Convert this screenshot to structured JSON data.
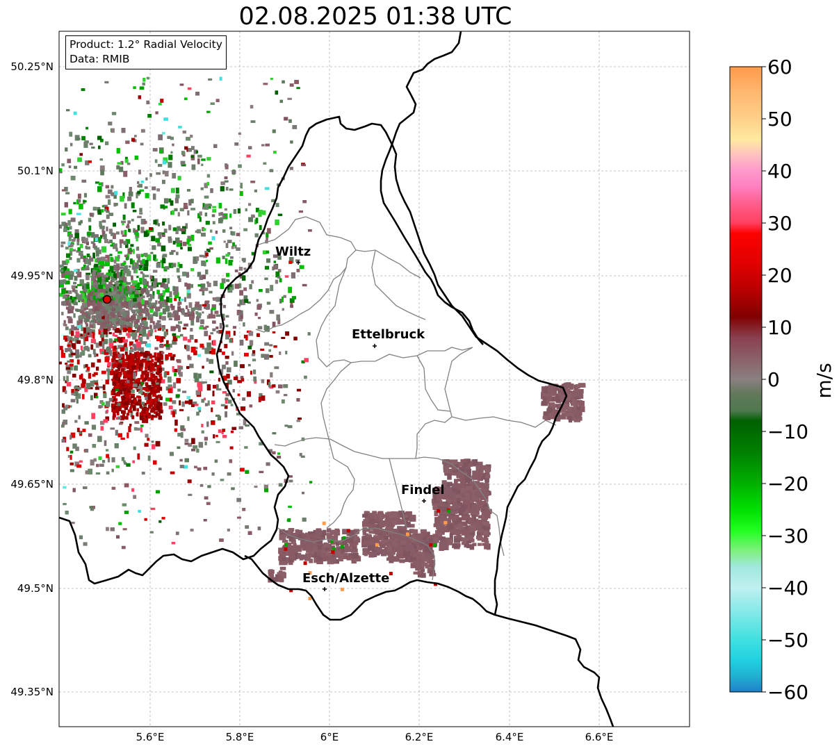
{
  "title": "02.08.2025 01:38 UTC",
  "info": {
    "product": "Product: 1.2° Radial Velocity",
    "data": "Data: RMIB"
  },
  "lat_labels": [
    "50.25°N",
    "50.1°N",
    "49.95°N",
    "49.8°N",
    "49.65°N",
    "49.5°N",
    "49.35°N"
  ],
  "lon_labels": [
    "5.6°E",
    "5.8°E",
    "6°E",
    "6.2°E",
    "6.4°E",
    "6.6°E"
  ],
  "cities": [
    {
      "name": "Wiltz"
    },
    {
      "name": "Ettelbruck"
    },
    {
      "name": "Findel"
    },
    {
      "name": "Esch/Alzette"
    }
  ],
  "colorbar": {
    "unit": "m/s",
    "tick_labels": [
      "60",
      "50",
      "40",
      "30",
      "20",
      "10",
      "0",
      "−10",
      "−20",
      "−30",
      "−40",
      "−50",
      "−60"
    ],
    "range": [
      -60,
      60
    ],
    "stops": [
      {
        "v": 60,
        "c": "#ff9a4a"
      },
      {
        "v": 55,
        "c": "#ffb870"
      },
      {
        "v": 50,
        "c": "#ffd08a"
      },
      {
        "v": 46,
        "c": "#ffe9a0"
      },
      {
        "v": 43,
        "c": "#ffc0c0"
      },
      {
        "v": 40,
        "c": "#ff99cc"
      },
      {
        "v": 37,
        "c": "#ff80c0"
      },
      {
        "v": 34,
        "c": "#ff6090"
      },
      {
        "v": 30,
        "c": "#ff4060"
      },
      {
        "v": 28,
        "c": "#ff0000"
      },
      {
        "v": 22,
        "c": "#e00000"
      },
      {
        "v": 17,
        "c": "#b80000"
      },
      {
        "v": 12,
        "c": "#800000"
      },
      {
        "v": 8,
        "c": "#8a4050"
      },
      {
        "v": 4,
        "c": "#8a6068"
      },
      {
        "v": 0,
        "c": "#8a8080"
      },
      {
        "v": -3,
        "c": "#607858"
      },
      {
        "v": -6,
        "c": "#507850"
      },
      {
        "v": -8,
        "c": "#006000"
      },
      {
        "v": -14,
        "c": "#008000"
      },
      {
        "v": -20,
        "c": "#00b000"
      },
      {
        "v": -25,
        "c": "#00e000"
      },
      {
        "v": -29,
        "c": "#20ff20"
      },
      {
        "v": -33,
        "c": "#80f080"
      },
      {
        "v": -36,
        "c": "#a0e8e0"
      },
      {
        "v": -40,
        "c": "#c0f0f0"
      },
      {
        "v": -45,
        "c": "#80e8e8"
      },
      {
        "v": -50,
        "c": "#40e0e0"
      },
      {
        "v": -54,
        "c": "#20d0e0"
      },
      {
        "v": -57,
        "c": "#20b0d0"
      },
      {
        "v": -60,
        "c": "#2080c8"
      }
    ]
  },
  "colors": {
    "border": "#000000",
    "district_lines": "#808080",
    "radar_site": "#e00000",
    "clutter_grey": "#6b7f6b",
    "clutter_mauve": "#8a5a64"
  }
}
